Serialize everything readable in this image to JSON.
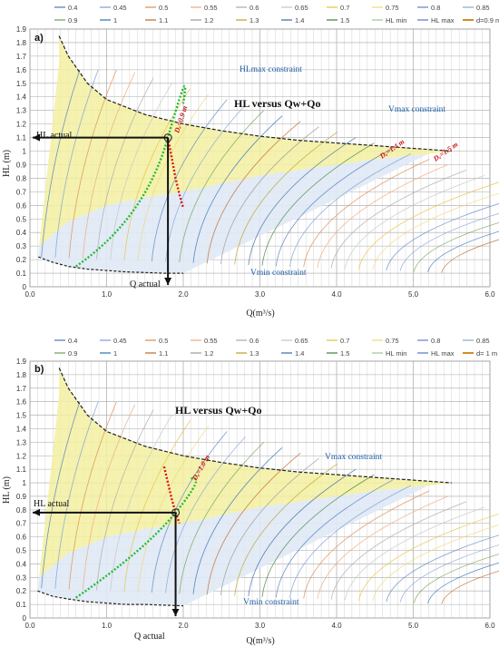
{
  "colors": {
    "grid": "#c8c8c8",
    "frame": "#8a8a8a",
    "yellow_fill": "#f2f0a0",
    "blue_fill": "#dfe9f5",
    "green_curve": "#22bb33",
    "red_curve": "#dd1111",
    "annotation_blue": "#1f5fa8"
  },
  "chart_data": [
    {
      "panel_label": "a)",
      "type": "line",
      "xlabel": "Q(m³/s)",
      "ylabel": "HL (m)",
      "xlim": [
        0,
        6.0
      ],
      "ylim": [
        0,
        1.9
      ],
      "x_ticks": [
        "0.0",
        "1.0",
        "2.0",
        "3.0",
        "4.0",
        "5.0",
        "6.0"
      ],
      "y_ticks": [
        "0",
        "0.1",
        "0.2",
        "0.3",
        "0.4",
        "0.5",
        "0.6",
        "0.7",
        "0.8",
        "0.9",
        "1",
        "1.1",
        "1.2",
        "1.3",
        "1.4",
        "1.5",
        "1.6",
        "1.7",
        "1.8",
        "1.9"
      ],
      "grid": true,
      "legend_position": "top",
      "legend": [
        "0.4",
        "0.45",
        "0.5",
        "0.55",
        "0.6",
        "0.65",
        "0.7",
        "0.75",
        "0.8",
        "0.85",
        "0.9",
        "1",
        "1.1",
        "1.2",
        "1.3",
        "1.4",
        "1.5",
        "HL min",
        "HL max",
        "d=0.9 m"
      ],
      "legend_colors": [
        "#4e79c2",
        "#7a9ed6",
        "#e08a4e",
        "#f0a878",
        "#a8a8a8",
        "#c4c4c4",
        "#e7c23a",
        "#f0d878",
        "#5a84c4",
        "#86a6d8",
        "#70a050",
        "#2d6fb8",
        "#c0652a",
        "#9a9a9a",
        "#bba020",
        "#3b66a8",
        "#3e7e38",
        "#9ac890",
        "#4f78c4",
        "#d48a2a"
      ],
      "series": [
        {
          "name": "HL min",
          "x": [
            0.11,
            0.2,
            0.3,
            0.5,
            0.75,
            1.0,
            1.25,
            1.5,
            1.75,
            2.0
          ],
          "y": [
            0.22,
            0.2,
            0.18,
            0.15,
            0.13,
            0.12,
            0.11,
            0.105,
            0.1,
            0.1
          ]
        },
        {
          "name": "HL max",
          "x": [
            0.38,
            0.5,
            0.75,
            1.0,
            1.5,
            2.0,
            2.5,
            3.0,
            3.5,
            4.0,
            4.5,
            5.0,
            5.5
          ],
          "y": [
            1.85,
            1.7,
            1.5,
            1.38,
            1.27,
            1.2,
            1.15,
            1.11,
            1.08,
            1.06,
            1.04,
            1.02,
            1.0
          ]
        },
        {
          "name": "d=0.9 m",
          "x": [
            1.8,
            1.85,
            1.9,
            1.95,
            2.0
          ],
          "y": [
            1.1,
            0.95,
            0.8,
            0.68,
            0.58
          ]
        }
      ],
      "annotations": {
        "title": "HL versus Qw+Qo",
        "hl_actual": "HL actual",
        "q_actual": "Q actual",
        "vmax": "Vmax constraint",
        "vmin": "Vmin constraint",
        "hlmax": "HLmax constraint",
        "d_labels": [
          "Dₑ=0.9 m",
          "Dₑ=1.4 m",
          "Dₑ=1.5 m"
        ]
      },
      "operating_point": {
        "Q": 1.8,
        "HL": 1.1
      }
    },
    {
      "panel_label": "b)",
      "type": "line",
      "xlabel": "Q(m³/s)",
      "ylabel": "HL (m)",
      "xlim": [
        0,
        6.0
      ],
      "ylim": [
        0,
        1.9
      ],
      "x_ticks": [
        "0.0",
        "1.0",
        "2.0",
        "3.0",
        "4.0",
        "5.0",
        "6.0"
      ],
      "y_ticks": [
        "0",
        "0.1",
        "0.2",
        "0.3",
        "0.4",
        "0.5",
        "0.6",
        "0.7",
        "0.8",
        "0.9",
        "1",
        "1.1",
        "1.2",
        "1.3",
        "1.4",
        "1.5",
        "1.6",
        "1.7",
        "1.8",
        "1.9"
      ],
      "grid": true,
      "legend_position": "top",
      "legend": [
        "0.4",
        "0.45",
        "0.5",
        "0.55",
        "0.6",
        "0.65",
        "0.7",
        "0.75",
        "0.8",
        "0.85",
        "0.9",
        "1",
        "1.1",
        "1.2",
        "1.3",
        "1.4",
        "1.5",
        "HL min",
        "HL max",
        "d= 1 m"
      ],
      "legend_colors": [
        "#4e79c2",
        "#7a9ed6",
        "#e08a4e",
        "#f0a878",
        "#a8a8a8",
        "#c4c4c4",
        "#e7c23a",
        "#f0d878",
        "#5a84c4",
        "#86a6d8",
        "#70a050",
        "#2d6fb8",
        "#c0652a",
        "#9a9a9a",
        "#bba020",
        "#3b66a8",
        "#3e7e38",
        "#9ac890",
        "#4f78c4",
        "#d48a2a"
      ],
      "series": [
        {
          "name": "HL min",
          "x": [
            0.1,
            0.2,
            0.3,
            0.5,
            0.75,
            1.0,
            1.25,
            1.5,
            1.75,
            2.0
          ],
          "y": [
            0.2,
            0.18,
            0.16,
            0.14,
            0.12,
            0.11,
            0.1,
            0.1,
            0.095,
            0.09
          ]
        },
        {
          "name": "HL max",
          "x": [
            0.38,
            0.5,
            0.75,
            1.0,
            1.5,
            2.0,
            2.5,
            3.0,
            3.5,
            4.0,
            4.5,
            5.0,
            5.5
          ],
          "y": [
            1.85,
            1.7,
            1.5,
            1.38,
            1.27,
            1.2,
            1.15,
            1.11,
            1.08,
            1.06,
            1.04,
            1.02,
            1.0
          ]
        },
        {
          "name": "d= 1 m",
          "x": [
            1.75,
            1.8,
            1.85,
            1.9,
            1.95
          ],
          "y": [
            1.12,
            1.0,
            0.88,
            0.78,
            0.7
          ]
        }
      ],
      "annotations": {
        "title": "HL versus Qw+Qo",
        "hl_actual": "HL actual",
        "q_actual": "Q actual",
        "vmax": "Vmax constraint",
        "vmin": "Vmin constraint",
        "d_labels": [
          "Dₑ=1.0 m"
        ]
      },
      "operating_point": {
        "Q": 1.9,
        "HL": 0.78
      }
    }
  ]
}
